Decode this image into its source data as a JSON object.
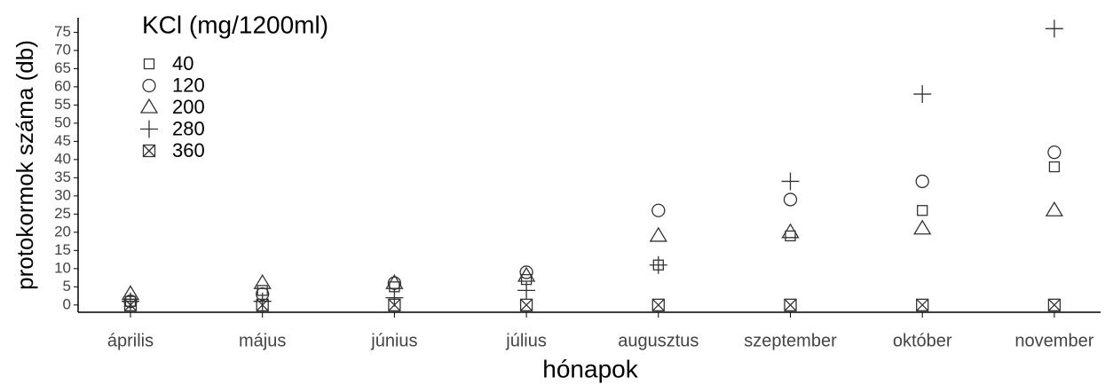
{
  "chart_data": {
    "type": "scatter",
    "x_label": "hónapok",
    "y_label": "protokormok száma (db)",
    "legend_title": "KCl (mg/1200ml)",
    "legend": "top-left",
    "categories": [
      "április",
      "május",
      "június",
      "július",
      "augusztus",
      "szeptember",
      "október",
      "november"
    ],
    "ylim": [
      -2,
      79
    ],
    "yticks": [
      0,
      5,
      10,
      15,
      20,
      25,
      30,
      35,
      40,
      45,
      50,
      55,
      60,
      65,
      70,
      75
    ],
    "series": [
      {
        "name": "40",
        "marker": "square",
        "color": "#333333",
        "values": [
          1,
          4,
          5,
          7,
          11,
          19,
          26,
          38
        ]
      },
      {
        "name": "120",
        "marker": "circle",
        "color": "#333333",
        "values": [
          1,
          3,
          6,
          9,
          26,
          29,
          34,
          42
        ]
      },
      {
        "name": "200",
        "marker": "triangle",
        "color": "#333333",
        "values": [
          3,
          6,
          6,
          8,
          19,
          20,
          21,
          26
        ]
      },
      {
        "name": "280",
        "marker": "plus",
        "color": "#333333",
        "values": [
          1,
          1,
          2,
          4,
          11,
          34,
          58,
          76
        ]
      },
      {
        "name": "360",
        "marker": "boxx",
        "color": "#333333",
        "values": [
          0,
          0,
          0,
          0,
          0,
          0,
          0,
          0
        ]
      }
    ]
  }
}
